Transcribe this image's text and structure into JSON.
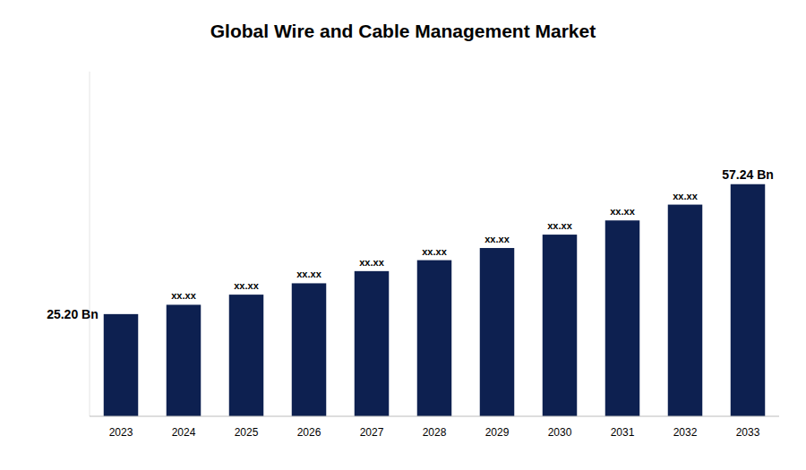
{
  "chart_data": {
    "type": "bar",
    "title": "Global Wire and Cable Management Market",
    "categories": [
      "2023",
      "2024",
      "2025",
      "2026",
      "2027",
      "2028",
      "2029",
      "2030",
      "2031",
      "2032",
      "2033"
    ],
    "values": [
      25.2,
      27.5,
      30.0,
      32.8,
      35.8,
      38.5,
      41.5,
      44.8,
      48.3,
      52.2,
      57.24
    ],
    "value_labels": [
      "25.20 Bn",
      "xx.xx",
      "xx.xx",
      "xx.xx",
      "xx.xx",
      "xx.xx",
      "xx.xx",
      "xx.xx",
      "xx.xx",
      "xx.xx",
      "57.24 Bn"
    ],
    "color": "#0d2050",
    "ylim": [
      0,
      85
    ],
    "grid": false,
    "tick_labels": "x"
  }
}
